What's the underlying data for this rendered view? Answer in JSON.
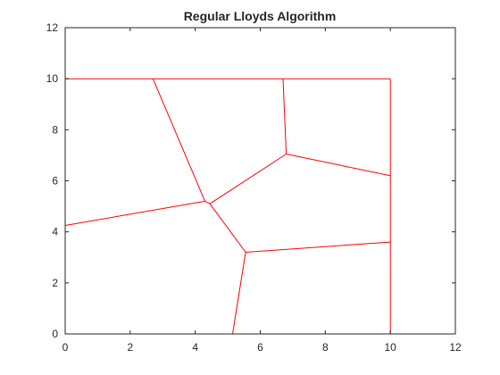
{
  "chart_data": {
    "type": "line",
    "title": "Regular Lloyds Algorithm",
    "xlabel": "",
    "ylabel": "",
    "xlim": [
      0,
      12
    ],
    "ylim": [
      0,
      12
    ],
    "xticks": [
      0,
      2,
      4,
      6,
      8,
      10,
      12
    ],
    "yticks": [
      0,
      2,
      4,
      6,
      8,
      10,
      12
    ],
    "grid": false,
    "legend": "none",
    "line_color": "#ff0000",
    "segments": [
      {
        "x": [
          0,
          10
        ],
        "y": [
          10,
          10
        ]
      },
      {
        "x": [
          10,
          10
        ],
        "y": [
          10,
          0
        ]
      },
      {
        "x": [
          10,
          0
        ],
        "y": [
          0,
          0
        ]
      },
      {
        "x": [
          0,
          0
        ],
        "y": [
          0,
          10
        ]
      },
      {
        "x": [
          2.7,
          4.3
        ],
        "y": [
          10,
          5.2
        ]
      },
      {
        "x": [
          6.7,
          6.8
        ],
        "y": [
          10,
          7.05
        ]
      },
      {
        "x": [
          6.8,
          10
        ],
        "y": [
          7.05,
          6.2
        ]
      },
      {
        "x": [
          6.8,
          4.45
        ],
        "y": [
          7.05,
          5.1
        ]
      },
      {
        "x": [
          4.3,
          4.45
        ],
        "y": [
          5.2,
          5.1
        ]
      },
      {
        "x": [
          0,
          4.3
        ],
        "y": [
          4.25,
          5.2
        ]
      },
      {
        "x": [
          4.45,
          5.55
        ],
        "y": [
          5.1,
          3.2
        ]
      },
      {
        "x": [
          5.55,
          10
        ],
        "y": [
          3.2,
          3.6
        ]
      },
      {
        "x": [
          5.55,
          5.15
        ],
        "y": [
          3.2,
          0
        ]
      }
    ]
  }
}
